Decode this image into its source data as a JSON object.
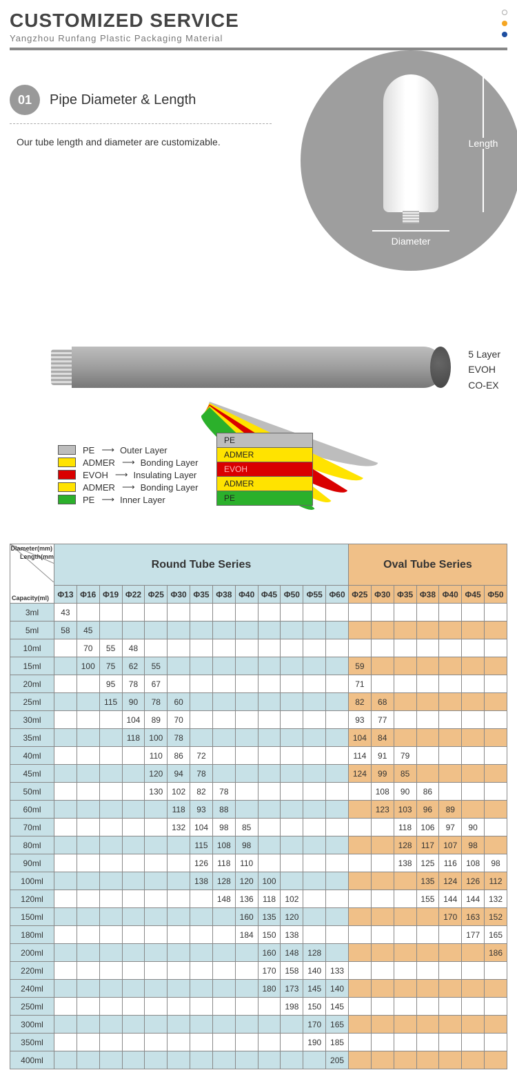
{
  "header": {
    "title": "CUSTOMIZED SERVICE",
    "subtitle": "Yangzhou Runfang Plastic Packaging Material",
    "dots": [
      "#ffffff",
      "#f5a623",
      "#1e4ea0"
    ]
  },
  "section01": {
    "num": "01",
    "title": "Pipe Diameter & Length",
    "desc": "Our tube length and diameter are customizable.",
    "length_label": "Length",
    "diameter_label": "Diameter",
    "circle_bg": "#9e9e9e"
  },
  "layers": {
    "side_lines": [
      "5 Layer",
      "EVOH",
      "CO-EX"
    ],
    "legend": [
      {
        "color": "#bdbdbd",
        "code": "PE",
        "role": "Outer Layer"
      },
      {
        "color": "#ffe300",
        "code": "ADMER",
        "role": "Bonding Layer"
      },
      {
        "color": "#d90000",
        "code": "EVOH",
        "role": "Insulating Layer"
      },
      {
        "color": "#ffe300",
        "code": "ADMER",
        "role": "Bonding Layer"
      },
      {
        "color": "#2bb02b",
        "code": "PE",
        "role": "Inner Layer"
      }
    ],
    "stack_labels": [
      "PE",
      "ADMER",
      "EVOH",
      "ADMER",
      "PE"
    ],
    "stack_colors": [
      "#bdbdbd",
      "#ffe300",
      "#d90000",
      "#ffe300",
      "#2bb02b"
    ]
  },
  "table": {
    "corner_labels": {
      "diameter": "Diameter(mm)",
      "length": "Length(mm)",
      "capacity": "Capacity(ml)"
    },
    "round_title": "Round Tube Series",
    "oval_title": "Oval Tube Series",
    "round_hdr_bg": "#c7e1e7",
    "oval_hdr_bg": "#f0c088",
    "round_diameters": [
      "Φ13",
      "Φ16",
      "Φ19",
      "Φ22",
      "Φ25",
      "Φ30",
      "Φ35",
      "Φ38",
      "Φ40",
      "Φ45",
      "Φ50",
      "Φ55",
      "Φ60"
    ],
    "oval_diameters": [
      "Φ25",
      "Φ30",
      "Φ35",
      "Φ38",
      "Φ40",
      "Φ45",
      "Φ50"
    ],
    "rows": [
      {
        "cap": "3ml",
        "round": {
          "Φ13": 43
        },
        "oval": {}
      },
      {
        "cap": "5ml",
        "round": {
          "Φ13": 58,
          "Φ16": 45
        },
        "oval": {}
      },
      {
        "cap": "10ml",
        "round": {
          "Φ16": 70,
          "Φ19": 55,
          "Φ22": 48
        },
        "oval": {}
      },
      {
        "cap": "15ml",
        "round": {
          "Φ16": 100,
          "Φ19": 75,
          "Φ22": 62,
          "Φ25": 55
        },
        "oval": {
          "Φ25": 59
        }
      },
      {
        "cap": "20ml",
        "round": {
          "Φ19": 95,
          "Φ22": 78,
          "Φ25": 67
        },
        "oval": {
          "Φ25": 71
        }
      },
      {
        "cap": "25ml",
        "round": {
          "Φ19": 115,
          "Φ22": 90,
          "Φ25": 78,
          "Φ30": 60
        },
        "oval": {
          "Φ25": 82,
          "Φ30": 68
        }
      },
      {
        "cap": "30ml",
        "round": {
          "Φ22": 104,
          "Φ25": 89,
          "Φ30": 70
        },
        "oval": {
          "Φ25": 93,
          "Φ30": 77
        }
      },
      {
        "cap": "35ml",
        "round": {
          "Φ22": 118,
          "Φ25": 100,
          "Φ30": 78
        },
        "oval": {
          "Φ25": 104,
          "Φ30": 84
        }
      },
      {
        "cap": "40ml",
        "round": {
          "Φ25": 110,
          "Φ30": 86,
          "Φ35": 72
        },
        "oval": {
          "Φ25": 114,
          "Φ30": 91,
          "Φ35": 79
        }
      },
      {
        "cap": "45ml",
        "round": {
          "Φ25": 120,
          "Φ30": 94,
          "Φ35": 78
        },
        "oval": {
          "Φ25": 124,
          "Φ30": 99,
          "Φ35": 85
        }
      },
      {
        "cap": "50ml",
        "round": {
          "Φ25": 130,
          "Φ30": 102,
          "Φ35": 82,
          "Φ38": 78
        },
        "oval": {
          "Φ30": 108,
          "Φ35": 90,
          "Φ38": 86
        }
      },
      {
        "cap": "60ml",
        "round": {
          "Φ30": 118,
          "Φ35": 93,
          "Φ38": 88
        },
        "oval": {
          "Φ30": 123,
          "Φ35": 103,
          "Φ38": 96,
          "Φ40": 89
        }
      },
      {
        "cap": "70ml",
        "round": {
          "Φ30": 132,
          "Φ35": 104,
          "Φ38": 98,
          "Φ40": 85
        },
        "oval": {
          "Φ35": 118,
          "Φ38": 106,
          "Φ40": 97,
          "Φ45": 90
        }
      },
      {
        "cap": "80ml",
        "round": {
          "Φ35": 115,
          "Φ38": 108,
          "Φ40": 98
        },
        "oval": {
          "Φ35": 128,
          "Φ38": 117,
          "Φ40": 107,
          "Φ45": 98
        }
      },
      {
        "cap": "90ml",
        "round": {
          "Φ35": 126,
          "Φ38": 118,
          "Φ40": 110
        },
        "oval": {
          "Φ35": 138,
          "Φ38": 125,
          "Φ40": 116,
          "Φ45": 108,
          "Φ50": 98
        }
      },
      {
        "cap": "100ml",
        "round": {
          "Φ35": 138,
          "Φ38": 128,
          "Φ40": 120,
          "Φ45": 100
        },
        "oval": {
          "Φ38": 135,
          "Φ40": 124,
          "Φ45": 126,
          "Φ50": 112
        }
      },
      {
        "cap": "120ml",
        "round": {
          "Φ38": 148,
          "Φ40": 136,
          "Φ45": 118,
          "Φ50": 102
        },
        "oval": {
          "Φ38": 155,
          "Φ40": 144,
          "Φ45": 144,
          "Φ50": 132
        }
      },
      {
        "cap": "150ml",
        "round": {
          "Φ40": 160,
          "Φ45": 135,
          "Φ50": 120
        },
        "oval": {
          "Φ40": 170,
          "Φ45": 163,
          "Φ50": 152
        }
      },
      {
        "cap": "180ml",
        "round": {
          "Φ40": 184,
          "Φ45": 150,
          "Φ50": 138
        },
        "oval": {
          "Φ45": 177,
          "Φ50": 165
        }
      },
      {
        "cap": "200ml",
        "round": {
          "Φ45": 160,
          "Φ50": 148,
          "Φ55": 128
        },
        "oval": {
          "Φ50": 186
        }
      },
      {
        "cap": "220ml",
        "round": {
          "Φ45": 170,
          "Φ50": 158,
          "Φ55": 140,
          "Φ60": 133
        },
        "oval": {}
      },
      {
        "cap": "240ml",
        "round": {
          "Φ45": 180,
          "Φ50": 173,
          "Φ55": 145,
          "Φ60": 140
        },
        "oval": {}
      },
      {
        "cap": "250ml",
        "round": {
          "Φ50": 198,
          "Φ55": 150,
          "Φ60": 145
        },
        "oval": {}
      },
      {
        "cap": "300ml",
        "round": {
          "Φ55": 170,
          "Φ60": 165
        },
        "oval": {}
      },
      {
        "cap": "350ml",
        "round": {
          "Φ55": 190,
          "Φ60": 185
        },
        "oval": {}
      },
      {
        "cap": "400ml",
        "round": {
          "Φ60": 205
        },
        "oval": {}
      }
    ]
  }
}
